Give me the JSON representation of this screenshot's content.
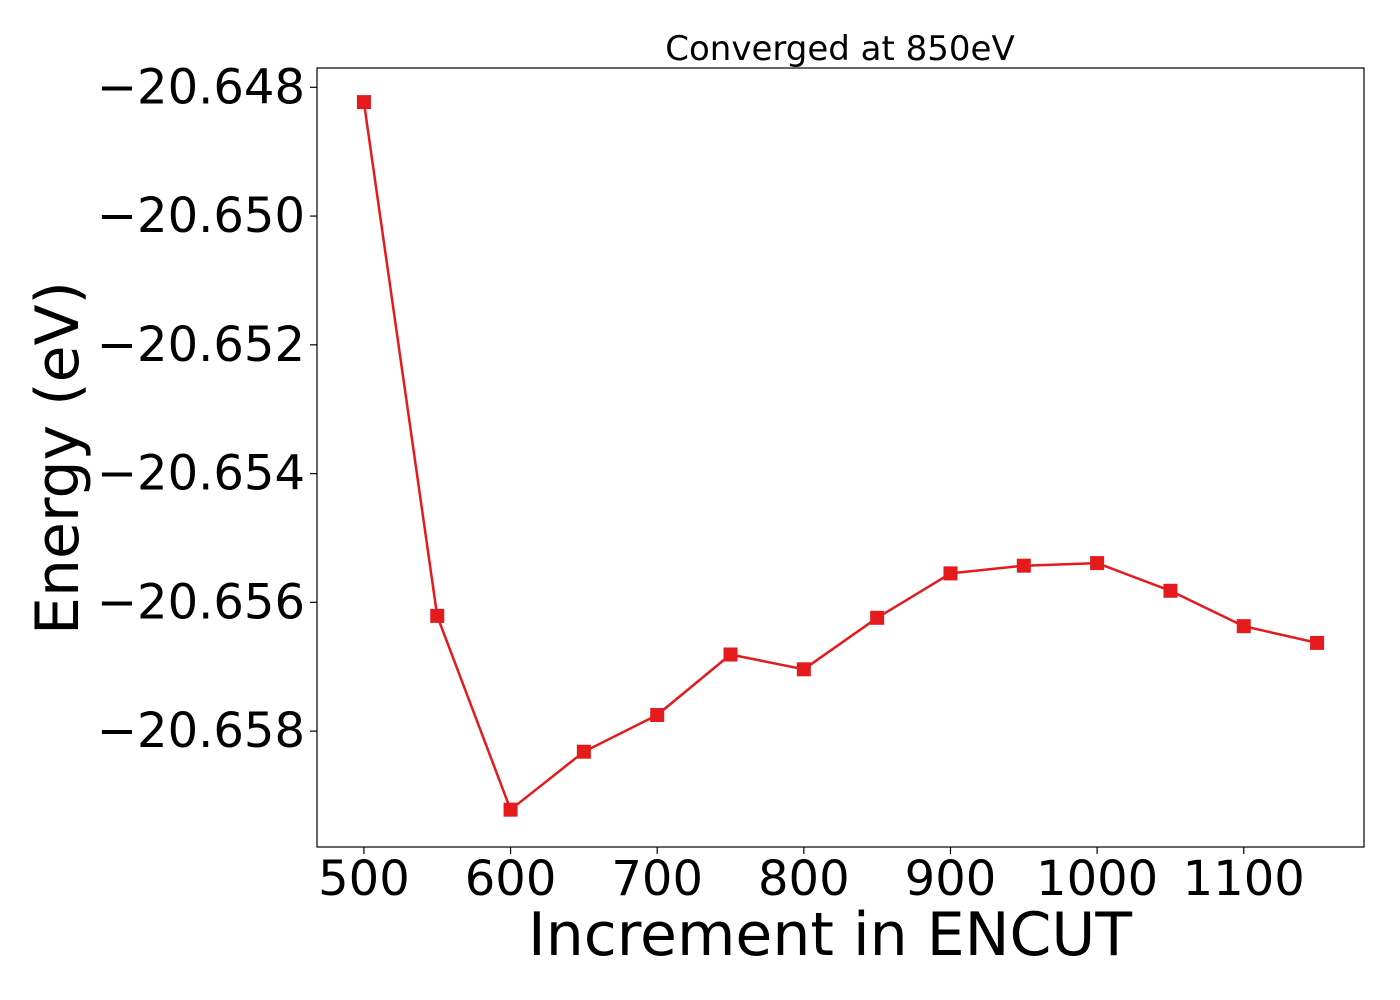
{
  "chart_data": {
    "type": "line",
    "title": "Converged at 850eV",
    "xlabel": "Increment in ENCUT",
    "ylabel": "Energy (eV)",
    "xlim": [
      468,
      1182
    ],
    "ylim": [
      -20.6598,
      -20.6477
    ],
    "x_ticks": [
      500,
      600,
      700,
      800,
      900,
      1000,
      1100
    ],
    "x_tick_labels": [
      "500",
      "600",
      "700",
      "800",
      "900",
      "1000",
      "1100"
    ],
    "y_ticks": [
      -20.648,
      -20.65,
      -20.652,
      -20.654,
      -20.656,
      -20.658
    ],
    "y_tick_labels": [
      "−20.648",
      "−20.650",
      "−20.652",
      "−20.654",
      "−20.656",
      "−20.658"
    ],
    "grid": false,
    "series": [
      {
        "color": "#e41a1c",
        "marker": "square",
        "x": [
          500,
          550,
          600,
          650,
          700,
          750,
          800,
          850,
          900,
          950,
          1000,
          1050,
          1100,
          1150
        ],
        "y": [
          -20.64823,
          -20.65621,
          -20.65922,
          -20.65832,
          -20.65775,
          -20.65681,
          -20.65704,
          -20.65624,
          -20.65555,
          -20.65543,
          -20.65539,
          -20.65582,
          -20.65637,
          -20.65663
        ]
      }
    ]
  }
}
